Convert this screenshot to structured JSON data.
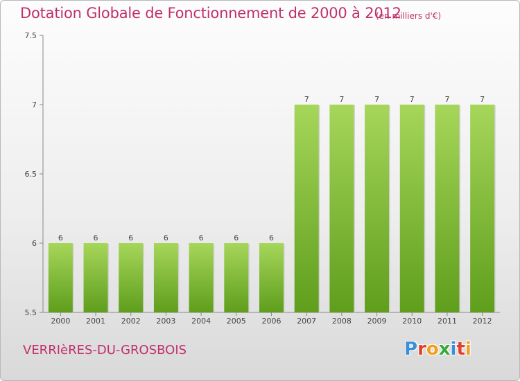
{
  "chart_data": {
    "type": "bar",
    "title": "Dotation Globale de Fonctionnement de 2000 à 2012",
    "subtitle": "(en milliers d'€)",
    "xlabel": "",
    "ylabel": "",
    "categories": [
      "2000",
      "2001",
      "2002",
      "2003",
      "2004",
      "2005",
      "2006",
      "2007",
      "2008",
      "2009",
      "2010",
      "2011",
      "2012"
    ],
    "values": [
      6,
      6,
      6,
      6,
      6,
      6,
      6,
      7,
      7,
      7,
      7,
      7,
      7
    ],
    "data_labels": [
      "6",
      "6",
      "6",
      "6",
      "6",
      "6",
      "6",
      "7",
      "7",
      "7",
      "7",
      "7",
      "7"
    ],
    "ylim": [
      5.5,
      7.5
    ],
    "yticks": [
      5.5,
      6,
      6.5,
      7,
      7.5
    ],
    "ytick_labels": [
      "5.5",
      "6",
      "6.5",
      "7",
      "7.5"
    ],
    "grid": false,
    "bar_color": "#7fbf3a"
  },
  "footer": {
    "commune": "VERRIèRES-DU-GROSBOIS",
    "logo": {
      "letters": [
        "P",
        "r",
        "o",
        "x",
        "i",
        "t",
        "i"
      ],
      "colors": [
        "#3a8fd6",
        "#e0402c",
        "#f0a020",
        "#3aa83a",
        "#3a8fd6",
        "#e0402c",
        "#f0a020"
      ]
    }
  }
}
